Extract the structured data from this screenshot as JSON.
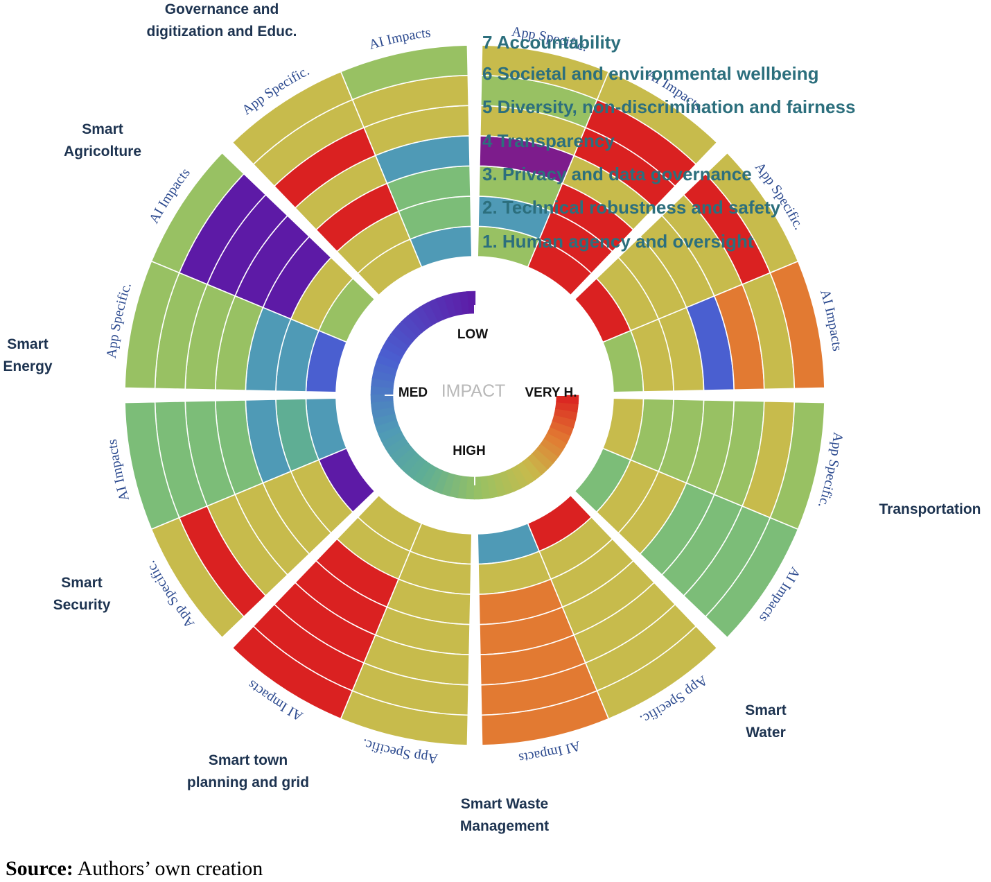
{
  "chart_data": {
    "type": "heatmap",
    "subtype": "radial-ring-heatmap",
    "title": "",
    "criteria": [
      "1. Human agency and oversight",
      "2. Technical robustness and safety",
      "3. Privacy and data governance",
      "4  Transparency",
      "5  Diversity, non-discrimination and fairness",
      "6  Societal and environmental wellbeing",
      "7  Accountability"
    ],
    "impact_scale": [
      "LOW",
      "MED",
      "HIGH",
      "VERY H."
    ],
    "impact_scale_title": "IMPACT",
    "ring_labels": {
      "ai": "AI Impacts",
      "app": "App Specific."
    },
    "level_colors": {
      "LOW": "#5d1aa6",
      "LOW-MED": "#4a5fd0",
      "MED-LOW": "#4f9ab6",
      "MED": "#5fae94",
      "MED-HIGH": "#7cbd78",
      "HIGH-MED": "#98c163",
      "HIGH": "#c7bb4c",
      "HIGH-VH": "#e27a32",
      "VERY H.": "#da2121",
      "PURPLE": "#7d1c8c"
    },
    "sectors": [
      {
        "name": "Governance and digitization and Educ.",
        "ai_impacts": [
          "MED-LOW",
          "MED-HIGH",
          "MED-HIGH",
          "MED-LOW",
          "HIGH",
          "HIGH",
          "HIGH-MED"
        ],
        "app_specific": [
          "HIGH",
          "HIGH",
          "VERY H.",
          "HIGH",
          "VERY H.",
          "HIGH",
          "HIGH"
        ]
      },
      {
        "name": "Smart Agricolture",
        "ai_impacts": [
          "HIGH-MED",
          "HIGH",
          "LOW",
          "LOW",
          "LOW",
          "LOW",
          "HIGH-MED"
        ],
        "app_specific": [
          "LOW-MED",
          "MED-LOW",
          "MED-LOW",
          "HIGH-MED",
          "HIGH-MED",
          "HIGH-MED",
          "HIGH-MED"
        ]
      },
      {
        "name": "Smart Energy",
        "ai_impacts": [
          "MED-LOW",
          "MED",
          "MED-LOW",
          "MED-HIGH",
          "MED-HIGH",
          "MED-HIGH",
          "MED-HIGH"
        ],
        "app_specific": [
          "LOW",
          "HIGH",
          "HIGH",
          "HIGH",
          "HIGH",
          "VERY H.",
          "HIGH"
        ]
      },
      {
        "name": "Smart Security",
        "ai_impacts": [
          "HIGH",
          "HIGH",
          "VERY H.",
          "VERY H.",
          "VERY H.",
          "VERY H.",
          "VERY H."
        ],
        "app_specific": [
          "HIGH",
          "HIGH",
          "HIGH",
          "HIGH",
          "HIGH",
          "HIGH",
          "HIGH"
        ]
      },
      {
        "name": "Smart town planning and grid",
        "ai_impacts": [
          "MED-LOW",
          "HIGH",
          "HIGH-VH",
          "HIGH-VH",
          "HIGH-VH",
          "HIGH-VH",
          "HIGH-VH"
        ],
        "app_specific": [
          "VERY H.",
          "HIGH",
          "HIGH",
          "HIGH",
          "HIGH",
          "HIGH",
          "HIGH"
        ]
      },
      {
        "name": "Smart Waste Management",
        "ai_impacts": [
          "MED-HIGH",
          "HIGH",
          "HIGH",
          "MED-HIGH",
          "MED-HIGH",
          "MED-HIGH",
          "MED-HIGH"
        ],
        "app_specific": [
          "HIGH",
          "HIGH-MED",
          "HIGH-MED",
          "HIGH-MED",
          "HIGH-MED",
          "HIGH",
          "HIGH-MED"
        ]
      },
      {
        "name": "Smart Water",
        "ai_impacts": [
          "HIGH-MED",
          "HIGH",
          "HIGH",
          "LOW-MED",
          "HIGH-VH",
          "HIGH",
          "HIGH-VH"
        ],
        "app_specific": [
          "VERY H.",
          "HIGH",
          "HIGH",
          "HIGH",
          "HIGH",
          "VERY H.",
          "HIGH"
        ]
      },
      {
        "name": "Transportation",
        "ai_impacts": [
          "VERY H.",
          "VERY H.",
          "VERY H.",
          "HIGH",
          "VERY H.",
          "VERY H.",
          "HIGH"
        ],
        "app_specific": [
          "HIGH-MED",
          "MED-LOW",
          "HIGH-MED",
          "PURPLE",
          "HIGH",
          "HIGH-MED",
          "HIGH"
        ]
      }
    ]
  },
  "source": {
    "label": "Source:",
    "text": " Authors’ own creation"
  }
}
